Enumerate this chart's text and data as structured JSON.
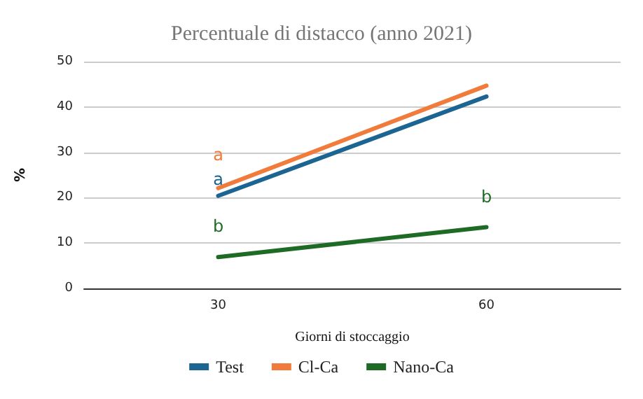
{
  "chart_data": {
    "type": "line",
    "title": "Percentuale di distacco (anno 2021)",
    "xlabel": "Giorni di stoccaggio",
    "ylabel": "%",
    "categories": [
      "30",
      "60"
    ],
    "series": [
      {
        "name": "Test",
        "color": "#1c6491",
        "values": [
          20.4,
          42.3
        ],
        "value_labels": [
          "a",
          null
        ]
      },
      {
        "name": "Cl-Ca",
        "color": "#f07b3a",
        "values": [
          22.1,
          44.7
        ],
        "value_labels": [
          "a",
          null
        ]
      },
      {
        "name": "Nano-Ca",
        "color": "#1e6b26",
        "values": [
          6.9,
          13.5
        ],
        "value_labels": [
          "b",
          "b"
        ]
      }
    ],
    "ylim": [
      0,
      50
    ],
    "yticks": [
      0,
      10,
      20,
      30,
      40,
      50
    ],
    "grid": "y",
    "legend": "bottom",
    "marker": "none",
    "line_style": "solid"
  }
}
